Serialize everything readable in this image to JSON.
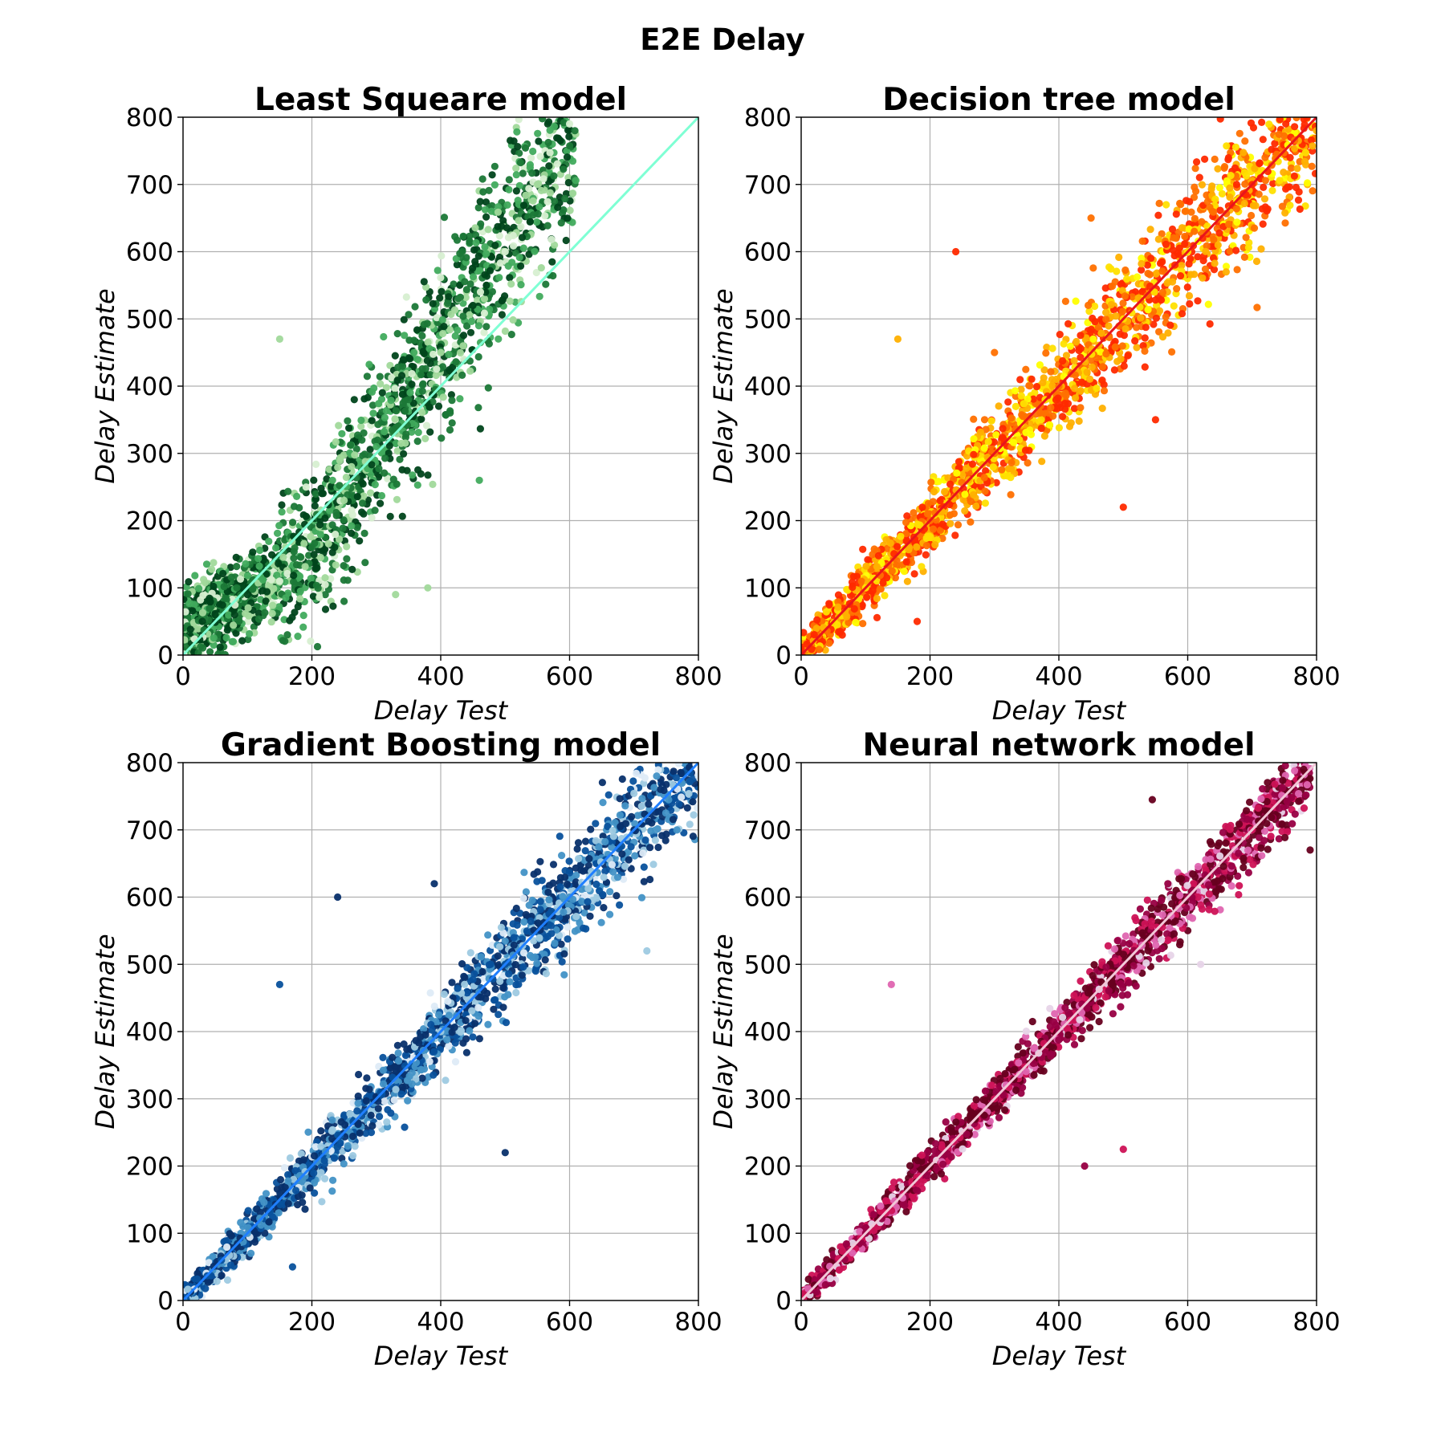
{
  "figure": {
    "title": "E2E Delay"
  },
  "chart_data": [
    {
      "type": "scatter",
      "title": "Least Squeare model",
      "xlabel": "Delay Test",
      "ylabel": "Delay Estimate",
      "xlim": [
        0,
        800
      ],
      "ylim": [
        0,
        800
      ],
      "xticks": [
        "0",
        "200",
        "400",
        "600",
        "800"
      ],
      "yticks": [
        "0",
        "100",
        "200",
        "300",
        "400",
        "500",
        "600",
        "700",
        "800"
      ],
      "grid": true,
      "colormap": [
        "#d7efd1",
        "#a1d99b",
        "#41ab5d",
        "#1b7837",
        "#00441b"
      ],
      "reference_line": {
        "x": [
          0,
          800
        ],
        "y": [
          0,
          800
        ],
        "color": "#7fffd4"
      },
      "pattern": "curved",
      "points": [
        [
          0,
          40
        ],
        [
          30,
          50
        ],
        [
          50,
          60
        ],
        [
          80,
          60
        ],
        [
          100,
          90
        ],
        [
          150,
          110
        ],
        [
          200,
          160
        ],
        [
          250,
          230
        ],
        [
          300,
          310
        ],
        [
          350,
          380
        ],
        [
          400,
          450
        ],
        [
          450,
          520
        ],
        [
          500,
          600
        ],
        [
          550,
          700
        ],
        [
          600,
          790
        ],
        [
          250,
          80
        ],
        [
          330,
          90
        ],
        [
          380,
          100
        ],
        [
          150,
          470
        ],
        [
          460,
          260
        ]
      ]
    },
    {
      "type": "scatter",
      "title": "Decision tree model",
      "xlabel": "Delay Test",
      "ylabel": "Delay Estimate",
      "xlim": [
        0,
        800
      ],
      "ylim": [
        0,
        800
      ],
      "xticks": [
        "0",
        "200",
        "400",
        "600",
        "800"
      ],
      "yticks": [
        "0",
        "100",
        "200",
        "300",
        "400",
        "500",
        "600",
        "700",
        "800"
      ],
      "grid": true,
      "colormap": [
        "#ffff00",
        "#ffe000",
        "#ffb000",
        "#ff7000",
        "#ff2a00"
      ],
      "reference_line": {
        "x": [
          0,
          800
        ],
        "y": [
          0,
          800
        ],
        "color": "#e8141c"
      },
      "pattern": "linear",
      "points": [
        [
          0,
          10
        ],
        [
          100,
          100
        ],
        [
          200,
          200
        ],
        [
          300,
          300
        ],
        [
          400,
          400
        ],
        [
          500,
          500
        ],
        [
          600,
          600
        ],
        [
          700,
          700
        ],
        [
          800,
          780
        ],
        [
          240,
          600
        ],
        [
          150,
          470
        ],
        [
          500,
          220
        ],
        [
          550,
          350
        ],
        [
          180,
          50
        ],
        [
          300,
          450
        ],
        [
          450,
          650
        ]
      ]
    },
    {
      "type": "scatter",
      "title": "Gradient Boosting model",
      "xlabel": "Delay Test",
      "ylabel": "Delay Estimate",
      "xlim": [
        0,
        800
      ],
      "ylim": [
        0,
        800
      ],
      "xticks": [
        "0",
        "200",
        "400",
        "600",
        "800"
      ],
      "yticks": [
        "0",
        "100",
        "200",
        "300",
        "400",
        "500",
        "600",
        "700",
        "800"
      ],
      "grid": true,
      "colormap": [
        "#deebf7",
        "#9ecae1",
        "#4292c6",
        "#08519c",
        "#08306b"
      ],
      "reference_line": {
        "x": [
          0,
          800
        ],
        "y": [
          0,
          800
        ],
        "color": "#1f7fff"
      },
      "pattern": "linear-moderate",
      "points": [
        [
          0,
          5
        ],
        [
          100,
          100
        ],
        [
          200,
          200
        ],
        [
          300,
          300
        ],
        [
          400,
          400
        ],
        [
          500,
          500
        ],
        [
          600,
          600
        ],
        [
          700,
          700
        ],
        [
          800,
          780
        ],
        [
          240,
          600
        ],
        [
          150,
          470
        ],
        [
          500,
          220
        ],
        [
          170,
          50
        ],
        [
          390,
          620
        ],
        [
          720,
          520
        ]
      ]
    },
    {
      "type": "scatter",
      "title": "Neural network model",
      "xlabel": "Delay Test",
      "ylabel": "Delay Estimate",
      "xlim": [
        0,
        800
      ],
      "ylim": [
        0,
        800
      ],
      "xticks": [
        "0",
        "200",
        "400",
        "600",
        "800"
      ],
      "yticks": [
        "0",
        "100",
        "200",
        "300",
        "400",
        "500",
        "600",
        "700",
        "800"
      ],
      "grid": true,
      "colormap": [
        "#e7d4e8",
        "#df65b0",
        "#ce1256",
        "#980043",
        "#67001f"
      ],
      "reference_line": {
        "x": [
          0,
          800
        ],
        "y": [
          0,
          800
        ],
        "color": "#f2c8d8"
      },
      "pattern": "linear-tight",
      "points": [
        [
          0,
          10
        ],
        [
          100,
          100
        ],
        [
          200,
          200
        ],
        [
          300,
          300
        ],
        [
          400,
          400
        ],
        [
          500,
          500
        ],
        [
          600,
          600
        ],
        [
          700,
          700
        ],
        [
          780,
          790
        ],
        [
          140,
          470
        ],
        [
          545,
          745
        ],
        [
          440,
          200
        ],
        [
          500,
          225
        ],
        [
          790,
          670
        ],
        [
          620,
          500
        ]
      ]
    }
  ]
}
